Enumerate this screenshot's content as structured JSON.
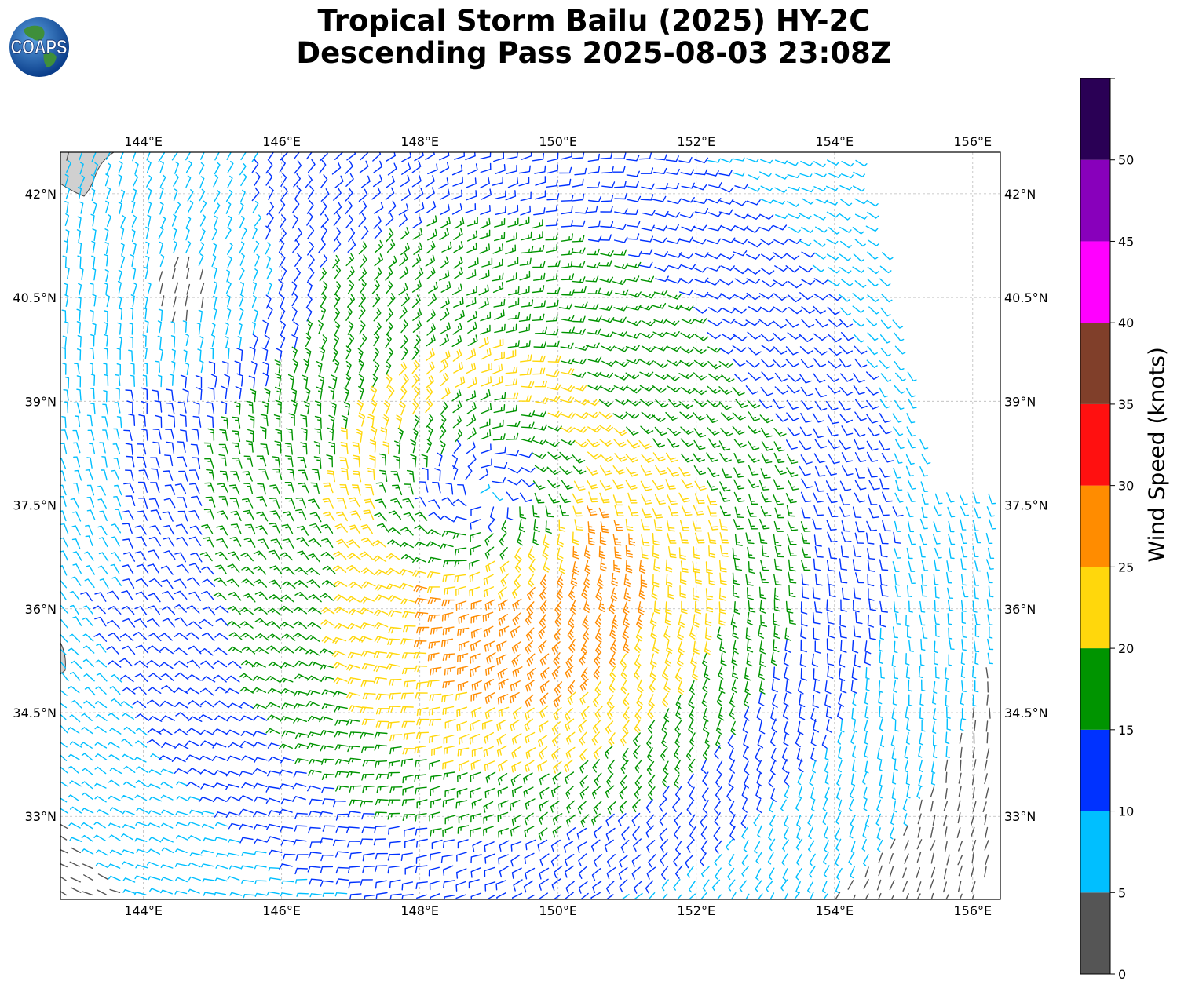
{
  "title_line1": "Tropical Storm Bailu (2025) HY-2C",
  "title_line2": "Descending Pass 2025-08-03 23:08Z",
  "logo_text": "COAPS",
  "map": {
    "lon_range": [
      142.8,
      156.4
    ],
    "lat_range": [
      31.8,
      42.6
    ],
    "lon_ticks": [
      {
        "value": 144,
        "label": "144°E"
      },
      {
        "value": 146,
        "label": "146°E"
      },
      {
        "value": 148,
        "label": "148°E"
      },
      {
        "value": 150,
        "label": "150°E"
      },
      {
        "value": 152,
        "label": "152°E"
      },
      {
        "value": 154,
        "label": "154°E"
      },
      {
        "value": 156,
        "label": "156°E"
      }
    ],
    "lat_ticks": [
      {
        "value": 42,
        "label": "42°N"
      },
      {
        "value": 40.5,
        "label": "40.5°N"
      },
      {
        "value": 39,
        "label": "39°N"
      },
      {
        "value": 37.5,
        "label": "37.5°N"
      },
      {
        "value": 36,
        "label": "36°N"
      },
      {
        "value": 34.5,
        "label": "34.5°N"
      },
      {
        "value": 33,
        "label": "33°N"
      }
    ],
    "grid": true,
    "storm_center": {
      "lon": 148.9,
      "lat": 37.6
    },
    "land_color": "#d0d0d0"
  },
  "colorbar": {
    "label": "Wind Speed (knots)",
    "bins": [
      {
        "min": 0,
        "max": 5,
        "color": "#555555"
      },
      {
        "min": 5,
        "max": 10,
        "color": "#00bfff"
      },
      {
        "min": 10,
        "max": 15,
        "color": "#0032ff"
      },
      {
        "min": 15,
        "max": 20,
        "color": "#009400"
      },
      {
        "min": 20,
        "max": 25,
        "color": "#ffd70c"
      },
      {
        "min": 25,
        "max": 30,
        "color": "#ff8c00"
      },
      {
        "min": 30,
        "max": 35,
        "color": "#ff1010"
      },
      {
        "min": 35,
        "max": 40,
        "color": "#803f2a"
      },
      {
        "min": 40,
        "max": 45,
        "color": "#ff00ff"
      },
      {
        "min": 45,
        "max": 50,
        "color": "#8800bb"
      },
      {
        "min": 50,
        "max": 55,
        "color": "#2a0055"
      }
    ],
    "tick_labels": [
      "0",
      "5",
      "10",
      "15",
      "20",
      "25",
      "30",
      "35",
      "40",
      "45",
      "50"
    ]
  }
}
